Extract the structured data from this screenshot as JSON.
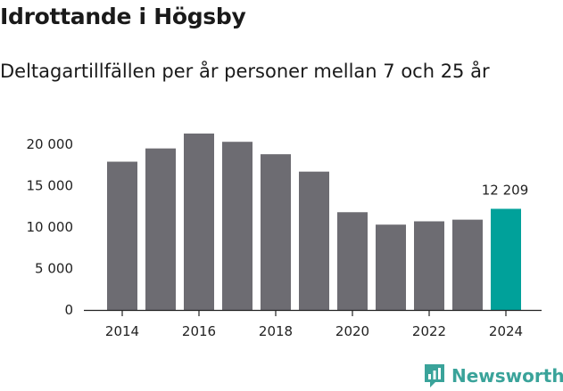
{
  "header": {
    "title": "Idrottande i Högsby",
    "subtitle": "Deltagartillfällen per år personer mellan 7 och 25 år"
  },
  "brand": {
    "name": "Newsworthy",
    "color": "#3aa39a"
  },
  "colors": {
    "bar": "#6d6c72",
    "highlight": "#00a19a",
    "axis": "#222222"
  },
  "chart_data": {
    "type": "bar",
    "title": "Idrottande i Högsby",
    "subtitle": "Deltagartillfällen per år personer mellan 7 och 25 år",
    "xlabel": "",
    "ylabel": "",
    "ylim": [
      0,
      22000
    ],
    "grid": false,
    "categories": [
      "2014",
      "2015",
      "2016",
      "2017",
      "2018",
      "2019",
      "2020",
      "2021",
      "2022",
      "2023",
      "2024"
    ],
    "values": [
      17900,
      19500,
      21300,
      20300,
      18800,
      16700,
      11800,
      10300,
      10700,
      10900,
      12209
    ],
    "highlight_index": 10,
    "yticks": [
      0,
      5000,
      10000,
      15000,
      20000
    ],
    "ytick_labels": [
      "0",
      "5 000",
      "10 000",
      "15 000",
      "20 000"
    ],
    "xtick_labels": [
      "2014",
      "2016",
      "2018",
      "2020",
      "2022",
      "2024"
    ],
    "data_labels": [
      {
        "index": 10,
        "text": "12 209"
      }
    ]
  }
}
